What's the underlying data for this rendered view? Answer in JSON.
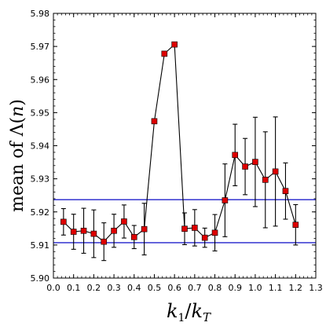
{
  "chart_data": {
    "type": "scatter",
    "xlabel_parts": [
      "k",
      "1",
      "/",
      "k",
      "T"
    ],
    "ylabel_parts": [
      "mean of ",
      "Λ",
      "(",
      "n",
      ")"
    ],
    "xlim": [
      0.0,
      1.3
    ],
    "ylim": [
      5.9,
      5.98
    ],
    "xticks": [
      0.0,
      0.1,
      0.2,
      0.3,
      0.4,
      0.5,
      0.6,
      0.7,
      0.8,
      0.9,
      1.0,
      1.1,
      1.2,
      1.3
    ],
    "xtick_labels": [
      "0.0",
      "0.1",
      "0.2",
      "0.3",
      "0.4",
      "0.5",
      "0.6",
      "0.7",
      "0.8",
      "0.9",
      "1.0",
      "1.1",
      "1.2",
      "1.3"
    ],
    "yticks": [
      5.9,
      5.91,
      5.92,
      5.93,
      5.94,
      5.95,
      5.96,
      5.97,
      5.98
    ],
    "ytick_labels": [
      "5.90",
      "5.91",
      "5.92",
      "5.93",
      "5.94",
      "5.95",
      "5.96",
      "5.97",
      "5.98"
    ],
    "grid": false,
    "reference_lines": [
      {
        "y": 5.9237,
        "color": "#2222cc"
      },
      {
        "y": 5.9107,
        "color": "#2222cc"
      }
    ],
    "series": [
      {
        "marker": "square",
        "marker_color": "#dd0000",
        "line_color": "#000000",
        "x": [
          0.05,
          0.1,
          0.15,
          0.2,
          0.25,
          0.3,
          0.35,
          0.4,
          0.45,
          0.5,
          0.55,
          0.6,
          0.65,
          0.7,
          0.75,
          0.8,
          0.85,
          0.9,
          0.95,
          1.0,
          1.05,
          1.1,
          1.15,
          1.2
        ],
        "y": [
          5.917,
          5.914,
          5.9143,
          5.9134,
          5.911,
          5.9143,
          5.9171,
          5.9124,
          5.9148,
          5.9474,
          5.9678,
          5.9706,
          5.9149,
          5.9152,
          5.9122,
          5.9137,
          5.9235,
          5.9372,
          5.9337,
          5.9351,
          5.9297,
          5.9322,
          5.9263,
          5.9161
        ],
        "err": [
          0.004,
          0.0053,
          0.0068,
          0.0072,
          0.0057,
          0.005,
          0.005,
          0.0035,
          0.0078,
          0.0,
          0.0,
          0.0,
          0.0048,
          0.0055,
          0.0029,
          0.0055,
          0.011,
          0.0093,
          0.0085,
          0.0135,
          0.0145,
          0.0165,
          0.0085,
          0.0061
        ]
      }
    ]
  }
}
